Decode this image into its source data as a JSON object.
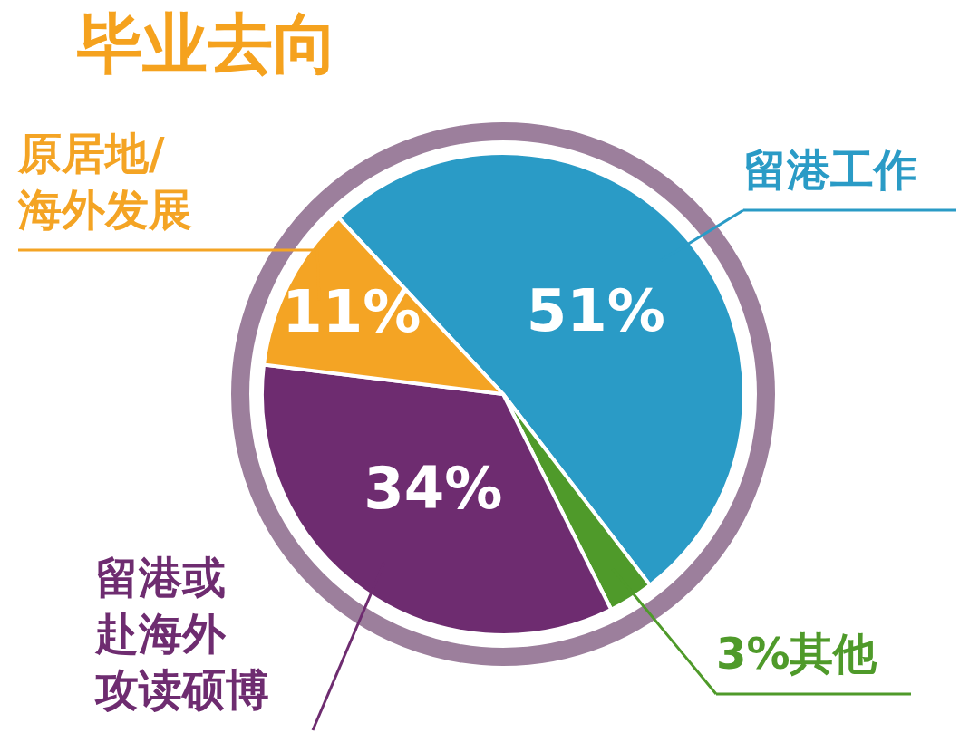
{
  "chart_data": {
    "type": "pie",
    "title": "毕业去向",
    "categories": [
      "留港工作",
      "3%其他",
      "留港或赴海外攻读硕博",
      "原居地/海外发展"
    ],
    "values": [
      51,
      3,
      34,
      11
    ],
    "value_labels": [
      "51%",
      null,
      "34%",
      "11%"
    ],
    "colors": [
      "#2a9bc6",
      "#4f9a2a",
      "#6e2c70",
      "#f4a424"
    ]
  }
}
